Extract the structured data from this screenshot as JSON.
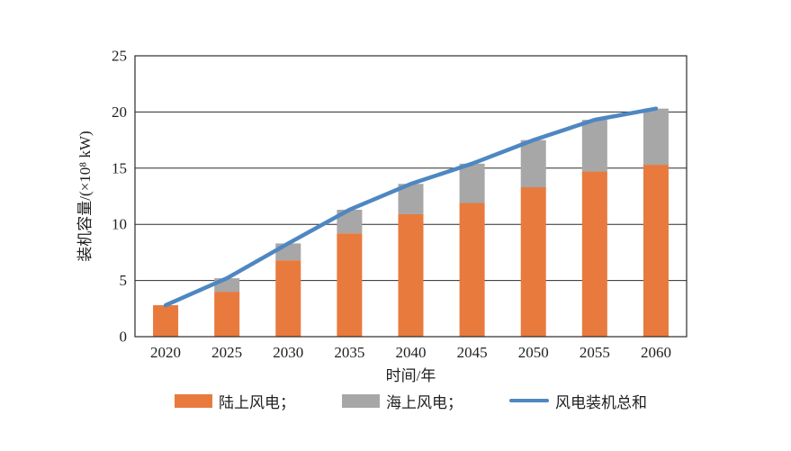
{
  "chart_data": {
    "type": "bar",
    "subtype": "stacked-bar-with-line",
    "title": "",
    "xlabel": "时间/年",
    "ylabel": "装机容量/(×10⁸ kW)",
    "categories": [
      "2020",
      "2025",
      "2030",
      "2035",
      "2040",
      "2045",
      "2050",
      "2055",
      "2060"
    ],
    "series": [
      {
        "name": "陆上风电",
        "type": "bar",
        "color": "#e87a3e",
        "values": [
          2.8,
          4.0,
          6.8,
          9.2,
          10.9,
          11.9,
          13.3,
          14.7,
          15.3
        ]
      },
      {
        "name": "海上风电",
        "type": "bar",
        "color": "#a7a7a7",
        "values": [
          0,
          1.2,
          1.5,
          2.1,
          2.7,
          3.5,
          4.2,
          4.6,
          5.0
        ]
      },
      {
        "name": "风电装机总和",
        "type": "line",
        "color": "#4e87c1",
        "values": [
          2.8,
          5.2,
          8.3,
          11.3,
          13.6,
          15.4,
          17.5,
          19.3,
          20.3
        ]
      }
    ],
    "ylim": [
      0,
      25
    ],
    "ytick_step": 5,
    "yticks": [
      "0",
      "5",
      "10",
      "15",
      "20",
      "25"
    ],
    "grid": true,
    "grid_color": "#2b2b2b",
    "frame_color": "#2b2b2b",
    "text_color": "#1f1f1f",
    "legend_position": "bottom",
    "legend_labels": [
      "陆上风电；",
      "海上风电；",
      "风电装机总和"
    ]
  }
}
